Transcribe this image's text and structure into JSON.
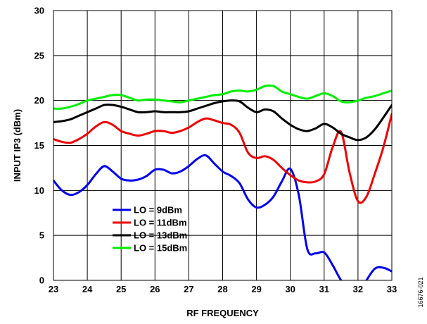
{
  "chart_data": {
    "type": "line",
    "xlabel": "RF FREQUENCY",
    "ylabel": "INPUT IP3 (dBm)",
    "xlim": [
      23,
      33
    ],
    "ylim": [
      0,
      30
    ],
    "xticks": [
      23,
      24,
      25,
      26,
      27,
      28,
      29,
      30,
      31,
      32,
      33
    ],
    "yticks": [
      0,
      5,
      10,
      15,
      20,
      25,
      30
    ],
    "grid": true,
    "legend_position": "lower-left",
    "figure_id": "16676-021",
    "series": [
      {
        "name": "LO = 9dBm",
        "color": "#0000ee",
        "x": [
          23,
          23.25,
          23.5,
          23.75,
          24,
          24.25,
          24.5,
          24.75,
          25,
          25.25,
          25.5,
          25.75,
          26,
          26.25,
          26.5,
          26.75,
          27,
          27.25,
          27.5,
          27.75,
          28,
          28.25,
          28.5,
          28.75,
          29,
          29.25,
          29.5,
          29.75,
          30,
          30.25,
          30.5,
          30.75,
          31,
          31.25,
          31.5,
          31.75,
          32,
          32.25,
          32.5,
          32.75,
          33
        ],
        "y": [
          11.1,
          10.0,
          9.5,
          9.8,
          10.6,
          11.8,
          12.7,
          12.1,
          11.3,
          11.1,
          11.2,
          11.6,
          12.3,
          12.3,
          11.9,
          12.1,
          12.7,
          13.5,
          13.9,
          13.0,
          12.1,
          11.6,
          10.8,
          9.0,
          8.1,
          8.4,
          9.3,
          11.0,
          12.4,
          9.5,
          3.5,
          3.0,
          3.1,
          1.7,
          0.0,
          -1.0,
          -1.6,
          0.0,
          1.3,
          1.4,
          1.0
        ]
      },
      {
        "name": "LO = 11dBm",
        "color": "#ee0000",
        "x": [
          23,
          23.25,
          23.5,
          23.75,
          24,
          24.25,
          24.5,
          24.75,
          25,
          25.25,
          25.5,
          25.75,
          26,
          26.25,
          26.5,
          26.75,
          27,
          27.25,
          27.5,
          27.75,
          28,
          28.25,
          28.5,
          28.75,
          29,
          29.25,
          29.5,
          29.75,
          30,
          30.25,
          30.5,
          30.75,
          31,
          31.25,
          31.5,
          31.75,
          32,
          32.25,
          32.5,
          32.75,
          33
        ],
        "y": [
          15.7,
          15.4,
          15.3,
          15.7,
          16.3,
          17.1,
          17.6,
          17.3,
          16.6,
          16.3,
          16.1,
          16.3,
          16.6,
          16.6,
          16.4,
          16.6,
          17.0,
          17.6,
          18.0,
          17.8,
          17.5,
          17.3,
          16.4,
          14.2,
          13.6,
          13.8,
          13.4,
          12.5,
          11.7,
          11.1,
          10.9,
          11.0,
          11.8,
          14.8,
          16.5,
          12.0,
          8.8,
          9.3,
          11.9,
          14.8,
          18.5
        ]
      },
      {
        "name": "LO = 13dBm",
        "color": "#000000",
        "x": [
          23,
          23.25,
          23.5,
          23.75,
          24,
          24.25,
          24.5,
          24.75,
          25,
          25.25,
          25.5,
          25.75,
          26,
          26.25,
          26.5,
          26.75,
          27,
          27.25,
          27.5,
          27.75,
          28,
          28.25,
          28.5,
          28.75,
          29,
          29.25,
          29.5,
          29.75,
          30,
          30.25,
          30.5,
          30.75,
          31,
          31.25,
          31.5,
          31.75,
          32,
          32.25,
          32.5,
          32.75,
          33
        ],
        "y": [
          17.6,
          17.7,
          17.9,
          18.3,
          18.7,
          19.1,
          19.5,
          19.5,
          19.3,
          19.0,
          18.7,
          18.7,
          18.8,
          18.7,
          18.7,
          18.7,
          18.8,
          19.1,
          19.4,
          19.7,
          19.9,
          20.0,
          19.9,
          19.2,
          18.7,
          19.0,
          18.8,
          18.0,
          17.3,
          16.8,
          16.6,
          16.9,
          17.4,
          17.0,
          16.3,
          15.9,
          15.6,
          15.9,
          16.8,
          18.1,
          19.5
        ]
      },
      {
        "name": "LO = 15dBm",
        "color": "#00ee00",
        "x": [
          23,
          23.25,
          23.5,
          23.75,
          24,
          24.25,
          24.5,
          24.75,
          25,
          25.25,
          25.5,
          25.75,
          26,
          26.25,
          26.5,
          26.75,
          27,
          27.25,
          27.5,
          27.75,
          28,
          28.25,
          28.5,
          28.75,
          29,
          29.25,
          29.5,
          29.75,
          30,
          30.25,
          30.5,
          30.75,
          31,
          31.25,
          31.5,
          31.75,
          32,
          32.25,
          32.5,
          32.75,
          33
        ],
        "y": [
          19.1,
          19.1,
          19.3,
          19.6,
          20.0,
          20.2,
          20.4,
          20.6,
          20.6,
          20.3,
          20.0,
          20.1,
          20.1,
          20.0,
          19.9,
          19.8,
          20.0,
          20.2,
          20.4,
          20.6,
          20.7,
          21.0,
          21.1,
          21.0,
          21.2,
          21.6,
          21.6,
          21.0,
          20.7,
          20.4,
          20.2,
          20.5,
          20.8,
          20.5,
          19.9,
          19.8,
          20.0,
          20.3,
          20.5,
          20.8,
          21.1
        ]
      }
    ]
  }
}
